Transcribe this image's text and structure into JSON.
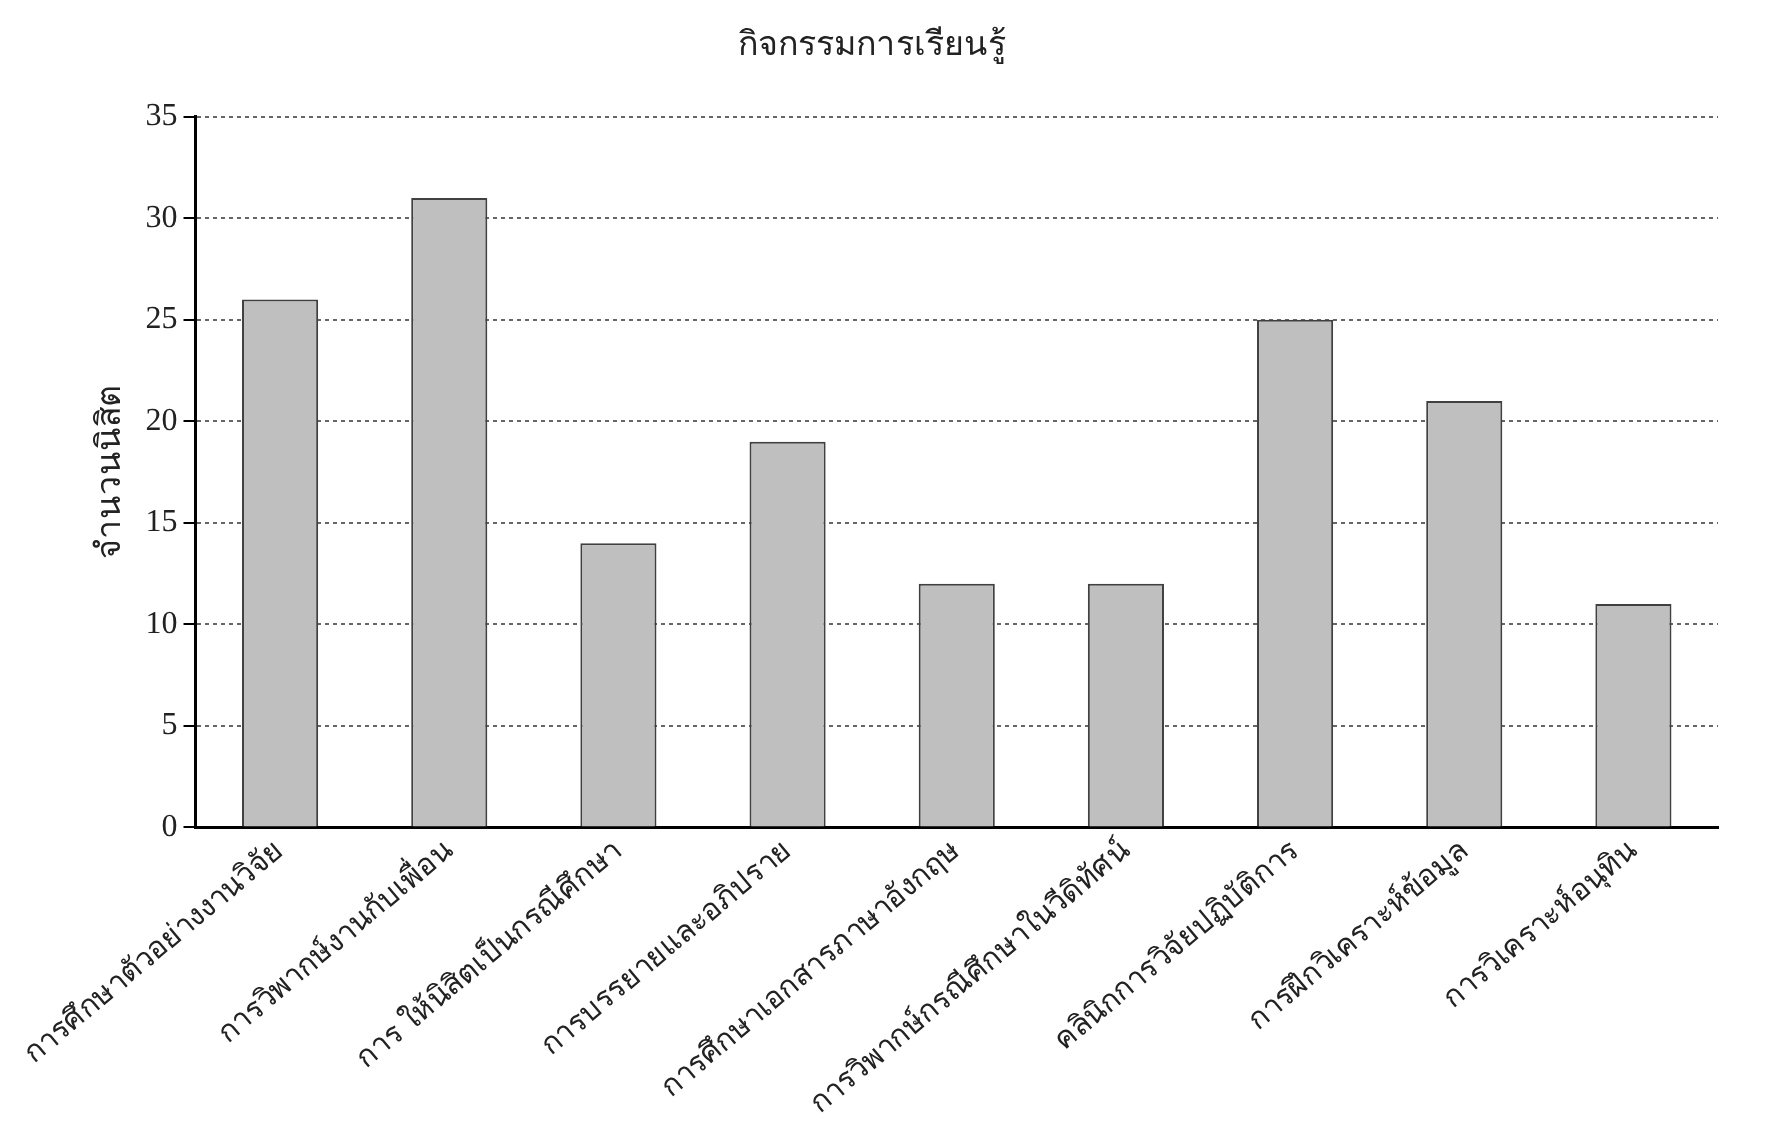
{
  "chart_data": {
    "type": "bar",
    "title": "กิจกรรมการเรียนรู้",
    "ylabel": "จำนวนนิสิต",
    "categories": [
      "การศึกษาตัวอย่างงานวิจัย",
      "การวิพากษ์งานกับเพื่อน",
      "การ ให้นิสิตเป็นกรณีศึกษา",
      "การบรรยายและอภิปราย",
      "การศึกษาเอกสารภาษาอังกฤษ",
      "การวิพากษ์กรณีศึกษาในวีดิทัศน์",
      "คลินิกการวิจัยปฏิบัติการ",
      "การฝึกวิเคราะห์ข้อมูล",
      "การวิเคราะห์อนุทิน"
    ],
    "values": [
      26,
      31,
      14,
      19,
      12,
      12,
      25,
      21,
      11
    ],
    "color": "#bfbfbf",
    "ylim": [
      0,
      35
    ],
    "yticks": [
      0,
      5,
      10,
      15,
      20,
      25,
      30,
      35
    ],
    "grid": "y",
    "legend": false
  }
}
